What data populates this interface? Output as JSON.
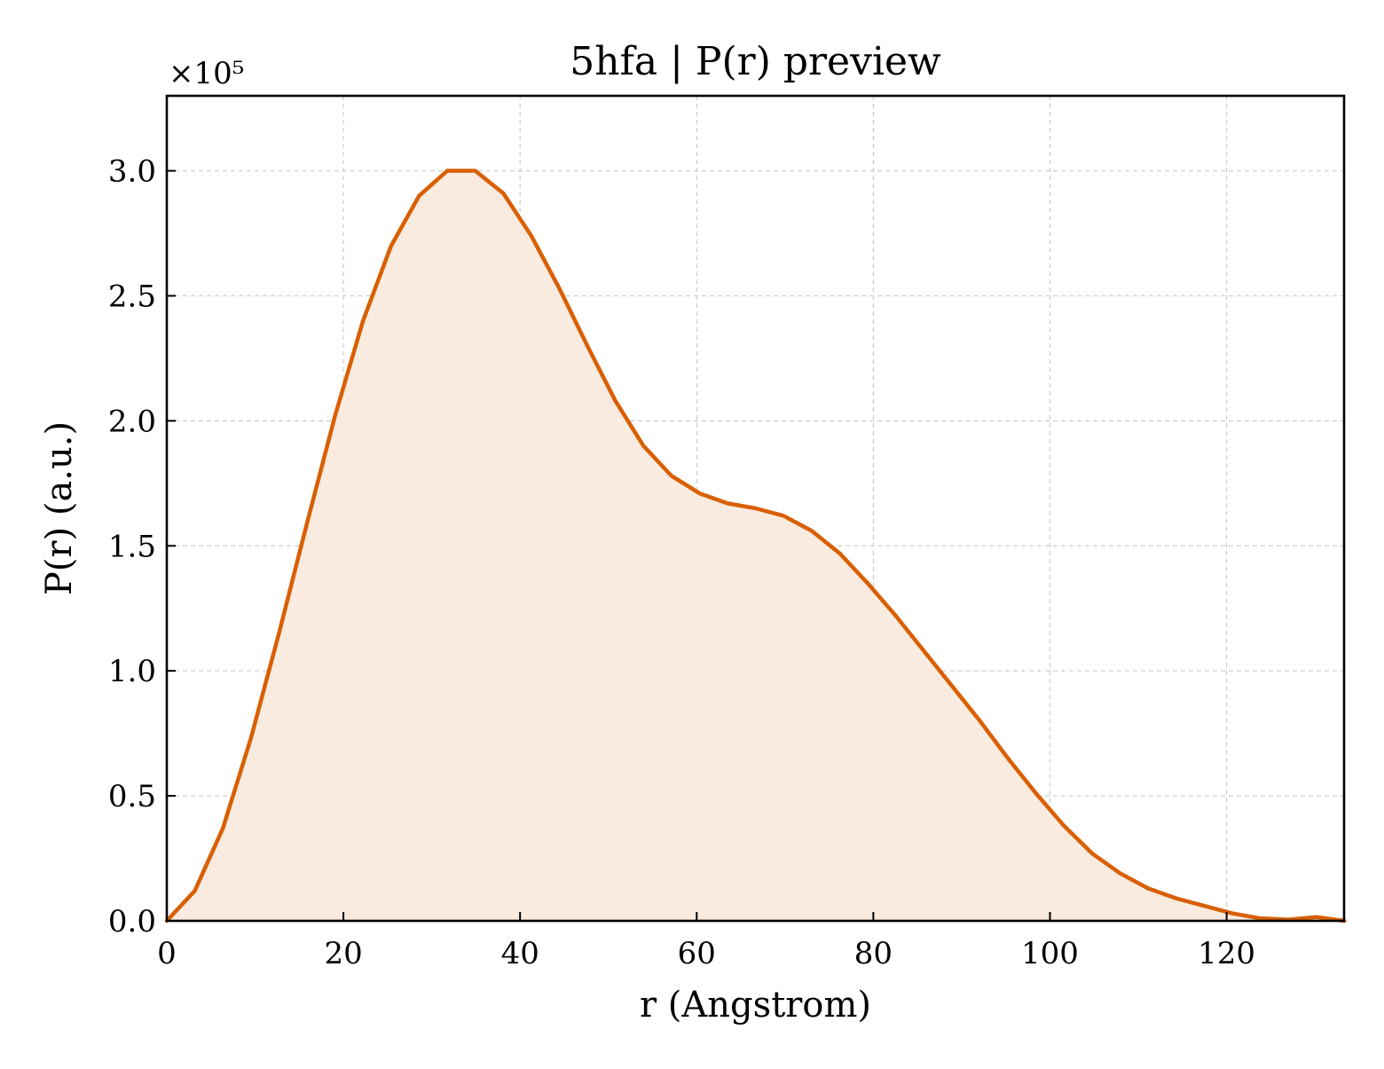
{
  "chart_data": {
    "type": "area",
    "title": "5hfa | P(r) preview",
    "xlabel": "r (Angstrom)",
    "ylabel": "P(r) (a.u.)",
    "y_exponent_label": "×10⁵",
    "xlim": [
      0,
      133.3
    ],
    "ylim": [
      0,
      3.3
    ],
    "x_ticks": [
      0,
      20,
      40,
      60,
      80,
      100,
      120
    ],
    "x_tick_labels": [
      "0",
      "20",
      "40",
      "60",
      "80",
      "100",
      "120"
    ],
    "y_ticks": [
      0,
      0.5,
      1.0,
      1.5,
      2.0,
      2.5,
      3.0
    ],
    "y_tick_labels": [
      "0.0",
      "0.5",
      "1.0",
      "1.5",
      "2.0",
      "2.5",
      "3.0"
    ],
    "grid": true,
    "line_color": "#d95f02",
    "fill_color": "#f9ebe0",
    "series": [
      {
        "x": [
          0,
          3.17,
          6.35,
          9.52,
          12.7,
          15.87,
          19.05,
          22.22,
          25.4,
          28.57,
          31.75,
          34.92,
          38.1,
          41.27,
          44.44,
          47.62,
          50.79,
          53.97,
          57.14,
          60.32,
          63.49,
          66.67,
          69.84,
          73.02,
          76.19,
          79.37,
          82.54,
          85.71,
          88.89,
          92.06,
          95.24,
          98.41,
          101.59,
          104.76,
          107.94,
          111.11,
          114.29,
          117.46,
          120.63,
          123.81,
          126.98,
          130.16,
          133.33
        ],
        "values": [
          0.0,
          0.12,
          0.37,
          0.73,
          1.15,
          1.59,
          2.02,
          2.4,
          2.7,
          2.9,
          3.0,
          3.0,
          2.91,
          2.74,
          2.53,
          2.3,
          2.08,
          1.9,
          1.78,
          1.71,
          1.67,
          1.65,
          1.62,
          1.56,
          1.47,
          1.35,
          1.22,
          1.08,
          0.94,
          0.8,
          0.65,
          0.51,
          0.38,
          0.27,
          0.19,
          0.13,
          0.09,
          0.06,
          0.03,
          0.01,
          0.005,
          0.015,
          0.0
        ]
      }
    ]
  }
}
